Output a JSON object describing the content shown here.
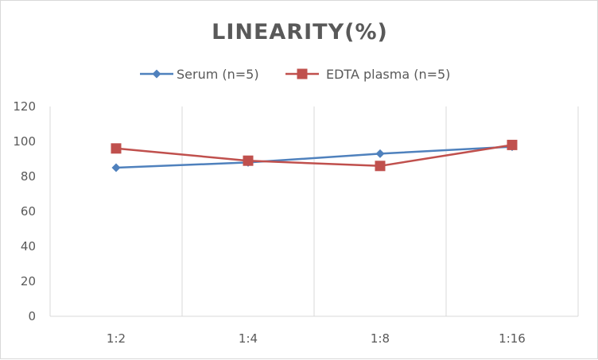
{
  "chart_data": {
    "type": "line",
    "title": "LINEARITY(%)",
    "categories": [
      "1:2",
      "1:4",
      "1:8",
      "1:16"
    ],
    "ylim": [
      0,
      120
    ],
    "yticks": [
      0,
      20,
      40,
      60,
      80,
      100,
      120
    ],
    "grid": "vertical",
    "legend_position": "top",
    "series": [
      {
        "name": "Serum (n=5)",
        "values": [
          85,
          88,
          93,
          97
        ],
        "color": "#4f81bd",
        "marker": "diamond"
      },
      {
        "name": "EDTA plasma (n=5)",
        "values": [
          96,
          89,
          86,
          98
        ],
        "color": "#c0504d",
        "marker": "square"
      }
    ]
  }
}
